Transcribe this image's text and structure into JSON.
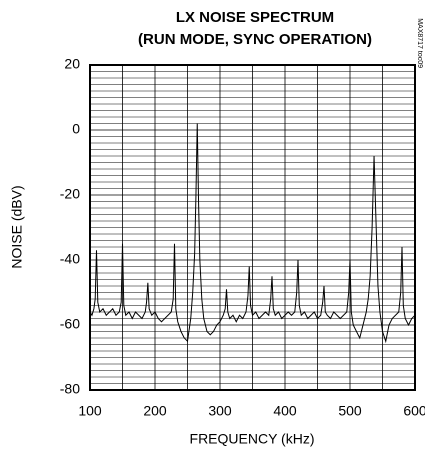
{
  "chart_data": {
    "type": "line",
    "title": [
      "LX NOISE SPECTRUM",
      "(RUN MODE, SYNC OPERATION)"
    ],
    "x_label": "FREQUENCY (kHz)",
    "y_label": "NOISE (dBV)",
    "note": "MAX8717 toc09",
    "xlim": [
      100,
      600
    ],
    "xticks": [
      100,
      200,
      300,
      400,
      500,
      600
    ],
    "ylim": [
      -80,
      20
    ],
    "yticks": [
      -80,
      -60,
      -40,
      -20,
      0,
      20
    ],
    "grid": true,
    "x": [
      100,
      103,
      106,
      108,
      110,
      112,
      115,
      120,
      125,
      130,
      135,
      140,
      145,
      148,
      150,
      152,
      155,
      160,
      165,
      170,
      175,
      180,
      185,
      187,
      189,
      191,
      195,
      200,
      205,
      210,
      215,
      220,
      225,
      228,
      230,
      232,
      235,
      240,
      245,
      250,
      255,
      258,
      261,
      263,
      265,
      267,
      269,
      272,
      275,
      280,
      285,
      290,
      295,
      300,
      305,
      308,
      310,
      312,
      315,
      320,
      325,
      330,
      335,
      340,
      343,
      345,
      347,
      350,
      355,
      360,
      365,
      370,
      375,
      378,
      380,
      382,
      385,
      390,
      395,
      400,
      405,
      410,
      415,
      418,
      420,
      422,
      425,
      430,
      435,
      440,
      445,
      450,
      455,
      458,
      460,
      462,
      465,
      470,
      475,
      480,
      485,
      490,
      495,
      498,
      500,
      502,
      505,
      510,
      515,
      520,
      525,
      528,
      531,
      534,
      537,
      540,
      543,
      546,
      550,
      555,
      560,
      565,
      570,
      575,
      578,
      580,
      582,
      585,
      590,
      595,
      600
    ],
    "series": [
      {
        "color": "#000000",
        "values": [
          -56,
          -57,
          -55,
          -52,
          -37,
          -53,
          -56,
          -55,
          -57,
          -56,
          -55,
          -57,
          -56,
          -53,
          -35,
          -54,
          -57,
          -56,
          -58,
          -56,
          -57,
          -58,
          -56,
          -53,
          -47,
          -55,
          -57,
          -56,
          -58,
          -59,
          -58,
          -57,
          -56,
          -52,
          -35,
          -55,
          -59,
          -62,
          -64,
          -65,
          -58,
          -50,
          -38,
          -20,
          2,
          -22,
          -40,
          -52,
          -58,
          -62,
          -63,
          -62,
          -60,
          -59,
          -57,
          -55,
          -49,
          -56,
          -58,
          -57,
          -59,
          -57,
          -58,
          -56,
          -51,
          -42,
          -54,
          -57,
          -56,
          -58,
          -57,
          -56,
          -57,
          -52,
          -45,
          -55,
          -57,
          -56,
          -58,
          -57,
          -56,
          -57,
          -56,
          -50,
          -40,
          -54,
          -57,
          -56,
          -58,
          -57,
          -56,
          -58,
          -57,
          -53,
          -48,
          -56,
          -57,
          -58,
          -56,
          -57,
          -58,
          -57,
          -56,
          -50,
          -40,
          -56,
          -60,
          -62,
          -64,
          -60,
          -56,
          -52,
          -45,
          -30,
          -8,
          -28,
          -48,
          -56,
          -62,
          -65,
          -60,
          -58,
          -57,
          -56,
          -50,
          -36,
          -54,
          -58,
          -60,
          -58,
          -57
        ]
      }
    ]
  }
}
